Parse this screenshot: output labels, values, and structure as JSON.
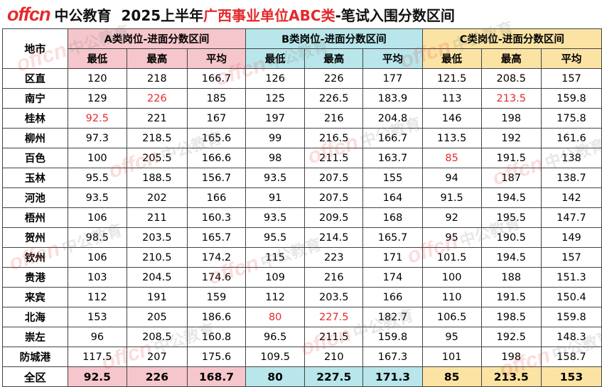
{
  "header": {
    "logo_text": "offcn",
    "brand": "中公教育",
    "title_prefix": "2025上半年",
    "title_highlight": "广西事业单位ABC类",
    "title_suffix": "-笔试入围分数区间"
  },
  "table": {
    "city_header": "地市",
    "groups": [
      "A类岗位-进面分数区间",
      "B类岗位-进面分数区间",
      "C类岗位-进面分数区间"
    ],
    "sub_headers": [
      "最低",
      "最高",
      "平均"
    ],
    "rows": [
      {
        "city": "区直",
        "values": [
          "120",
          "218",
          "166.7",
          "126",
          "226",
          "177",
          "121.5",
          "208.5",
          "157"
        ]
      },
      {
        "city": "南宁",
        "values": [
          "129",
          "226",
          "185",
          "125",
          "226.5",
          "183.9",
          "113",
          "213.5",
          "159.8"
        ]
      },
      {
        "city": "桂林",
        "values": [
          "92.5",
          "221",
          "167",
          "197",
          "216",
          "204.8",
          "146",
          "198",
          "175.8"
        ]
      },
      {
        "city": "柳州",
        "values": [
          "97.3",
          "218.5",
          "165.6",
          "99",
          "216.5",
          "166.7",
          "113.5",
          "192",
          "161.6"
        ]
      },
      {
        "city": "百色",
        "values": [
          "100",
          "205.5",
          "166.6",
          "98",
          "211.5",
          "163.7",
          "85",
          "191.5",
          "138"
        ]
      },
      {
        "city": "玉林",
        "values": [
          "95.5",
          "188.5",
          "156.7",
          "93.5",
          "207.5",
          "155",
          "94",
          "187",
          "138.7"
        ]
      },
      {
        "city": "河池",
        "values": [
          "93.5",
          "202",
          "166",
          "91",
          "207.5",
          "164",
          "91.5",
          "194.5",
          "142"
        ]
      },
      {
        "city": "梧州",
        "values": [
          "106",
          "211",
          "160.3",
          "93.5",
          "209.5",
          "168",
          "92",
          "195.5",
          "147.7"
        ]
      },
      {
        "city": "贺州",
        "values": [
          "98.5",
          "203.5",
          "165.7",
          "95.5",
          "214.5",
          "165.7",
          "95",
          "190.5",
          "149"
        ]
      },
      {
        "city": "钦州",
        "values": [
          "106",
          "210.5",
          "174.2",
          "115",
          "223",
          "171",
          "101.5",
          "194.5",
          "157"
        ]
      },
      {
        "city": "贵港",
        "values": [
          "103",
          "204.5",
          "174.6",
          "109",
          "216",
          "174",
          "100",
          "188",
          "151.3"
        ]
      },
      {
        "city": "来宾",
        "values": [
          "112",
          "191",
          "159",
          "112",
          "203.5",
          "166",
          "110",
          "191.5",
          "150.4"
        ]
      },
      {
        "city": "北海",
        "values": [
          "153",
          "205",
          "186.6",
          "80",
          "227.5",
          "182.7",
          "106.5",
          "198.5",
          "159.8"
        ]
      },
      {
        "city": "崇左",
        "values": [
          "96",
          "208.5",
          "160.8",
          "96.5",
          "211.5",
          "159.8",
          "95",
          "192.5",
          "148.3"
        ]
      },
      {
        "city": "防城港",
        "values": [
          "117.5",
          "207",
          "175.6",
          "109.5",
          "210",
          "167.3",
          "101",
          "198",
          "158.7"
        ]
      }
    ],
    "total": {
      "city": "全区",
      "values": [
        "92.5",
        "226",
        "168.7",
        "80",
        "227.5",
        "171.3",
        "85",
        "213.5",
        "153"
      ]
    },
    "highlighted_cells": [
      {
        "row": 1,
        "col": 1
      },
      {
        "row": 1,
        "col": 7
      },
      {
        "row": 2,
        "col": 0
      },
      {
        "row": 4,
        "col": 6
      },
      {
        "row": 12,
        "col": 3
      },
      {
        "row": 12,
        "col": 4
      }
    ],
    "colors": {
      "highlight": "#e5292b",
      "group_a": "#f5c6cc",
      "group_b": "#b8e6ea",
      "group_c": "#fbe3a4"
    }
  },
  "watermark": {
    "text": "offcn",
    "text_cn": "中公教育"
  }
}
